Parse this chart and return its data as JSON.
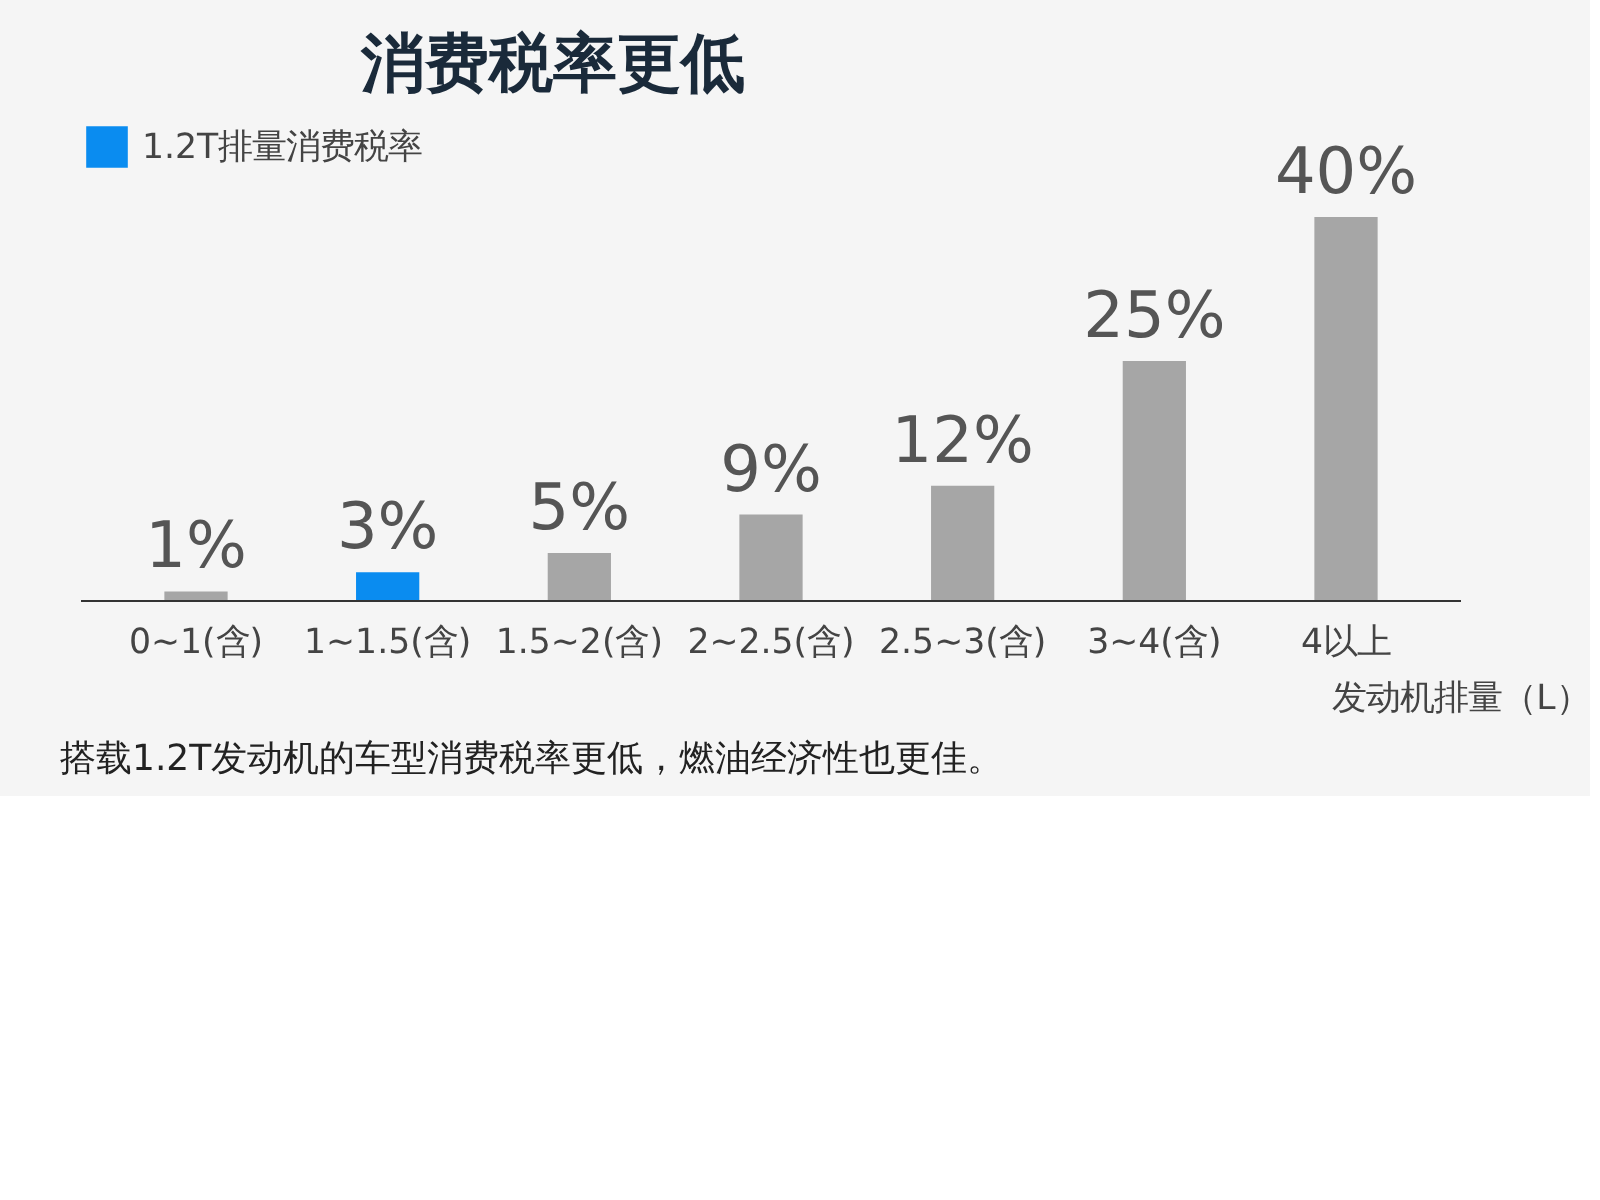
{
  "chart_data": {
    "type": "bar",
    "title": "消费税率更低",
    "xlabel": "发动机排量（L）",
    "categories": [
      "0~1(含)",
      "1~1.5(含)",
      "1.5~2(含)",
      "2~2.5(含)",
      "2.5~3(含)",
      "3~4(含)",
      "4以上"
    ],
    "series": [
      {
        "color": "#a6a6a6",
        "values": [
          1,
          null,
          5,
          9,
          12,
          25,
          40
        ],
        "value_labels": [
          "1%",
          null,
          "5%",
          "9%",
          "12%",
          "25%",
          "40%"
        ]
      },
      {
        "name": "1.2T排量消费税率",
        "color": "#0a8cf0",
        "values": [
          null,
          3,
          null,
          null,
          null,
          null,
          null
        ],
        "value_labels": [
          null,
          "3%",
          null,
          null,
          null,
          null,
          null
        ]
      }
    ],
    "tick_labels": "x",
    "legend": "top left",
    "annotations": [
      "搭载1.2T发动机的车型消费税率更低，燃油经济性也更佳。"
    ]
  }
}
